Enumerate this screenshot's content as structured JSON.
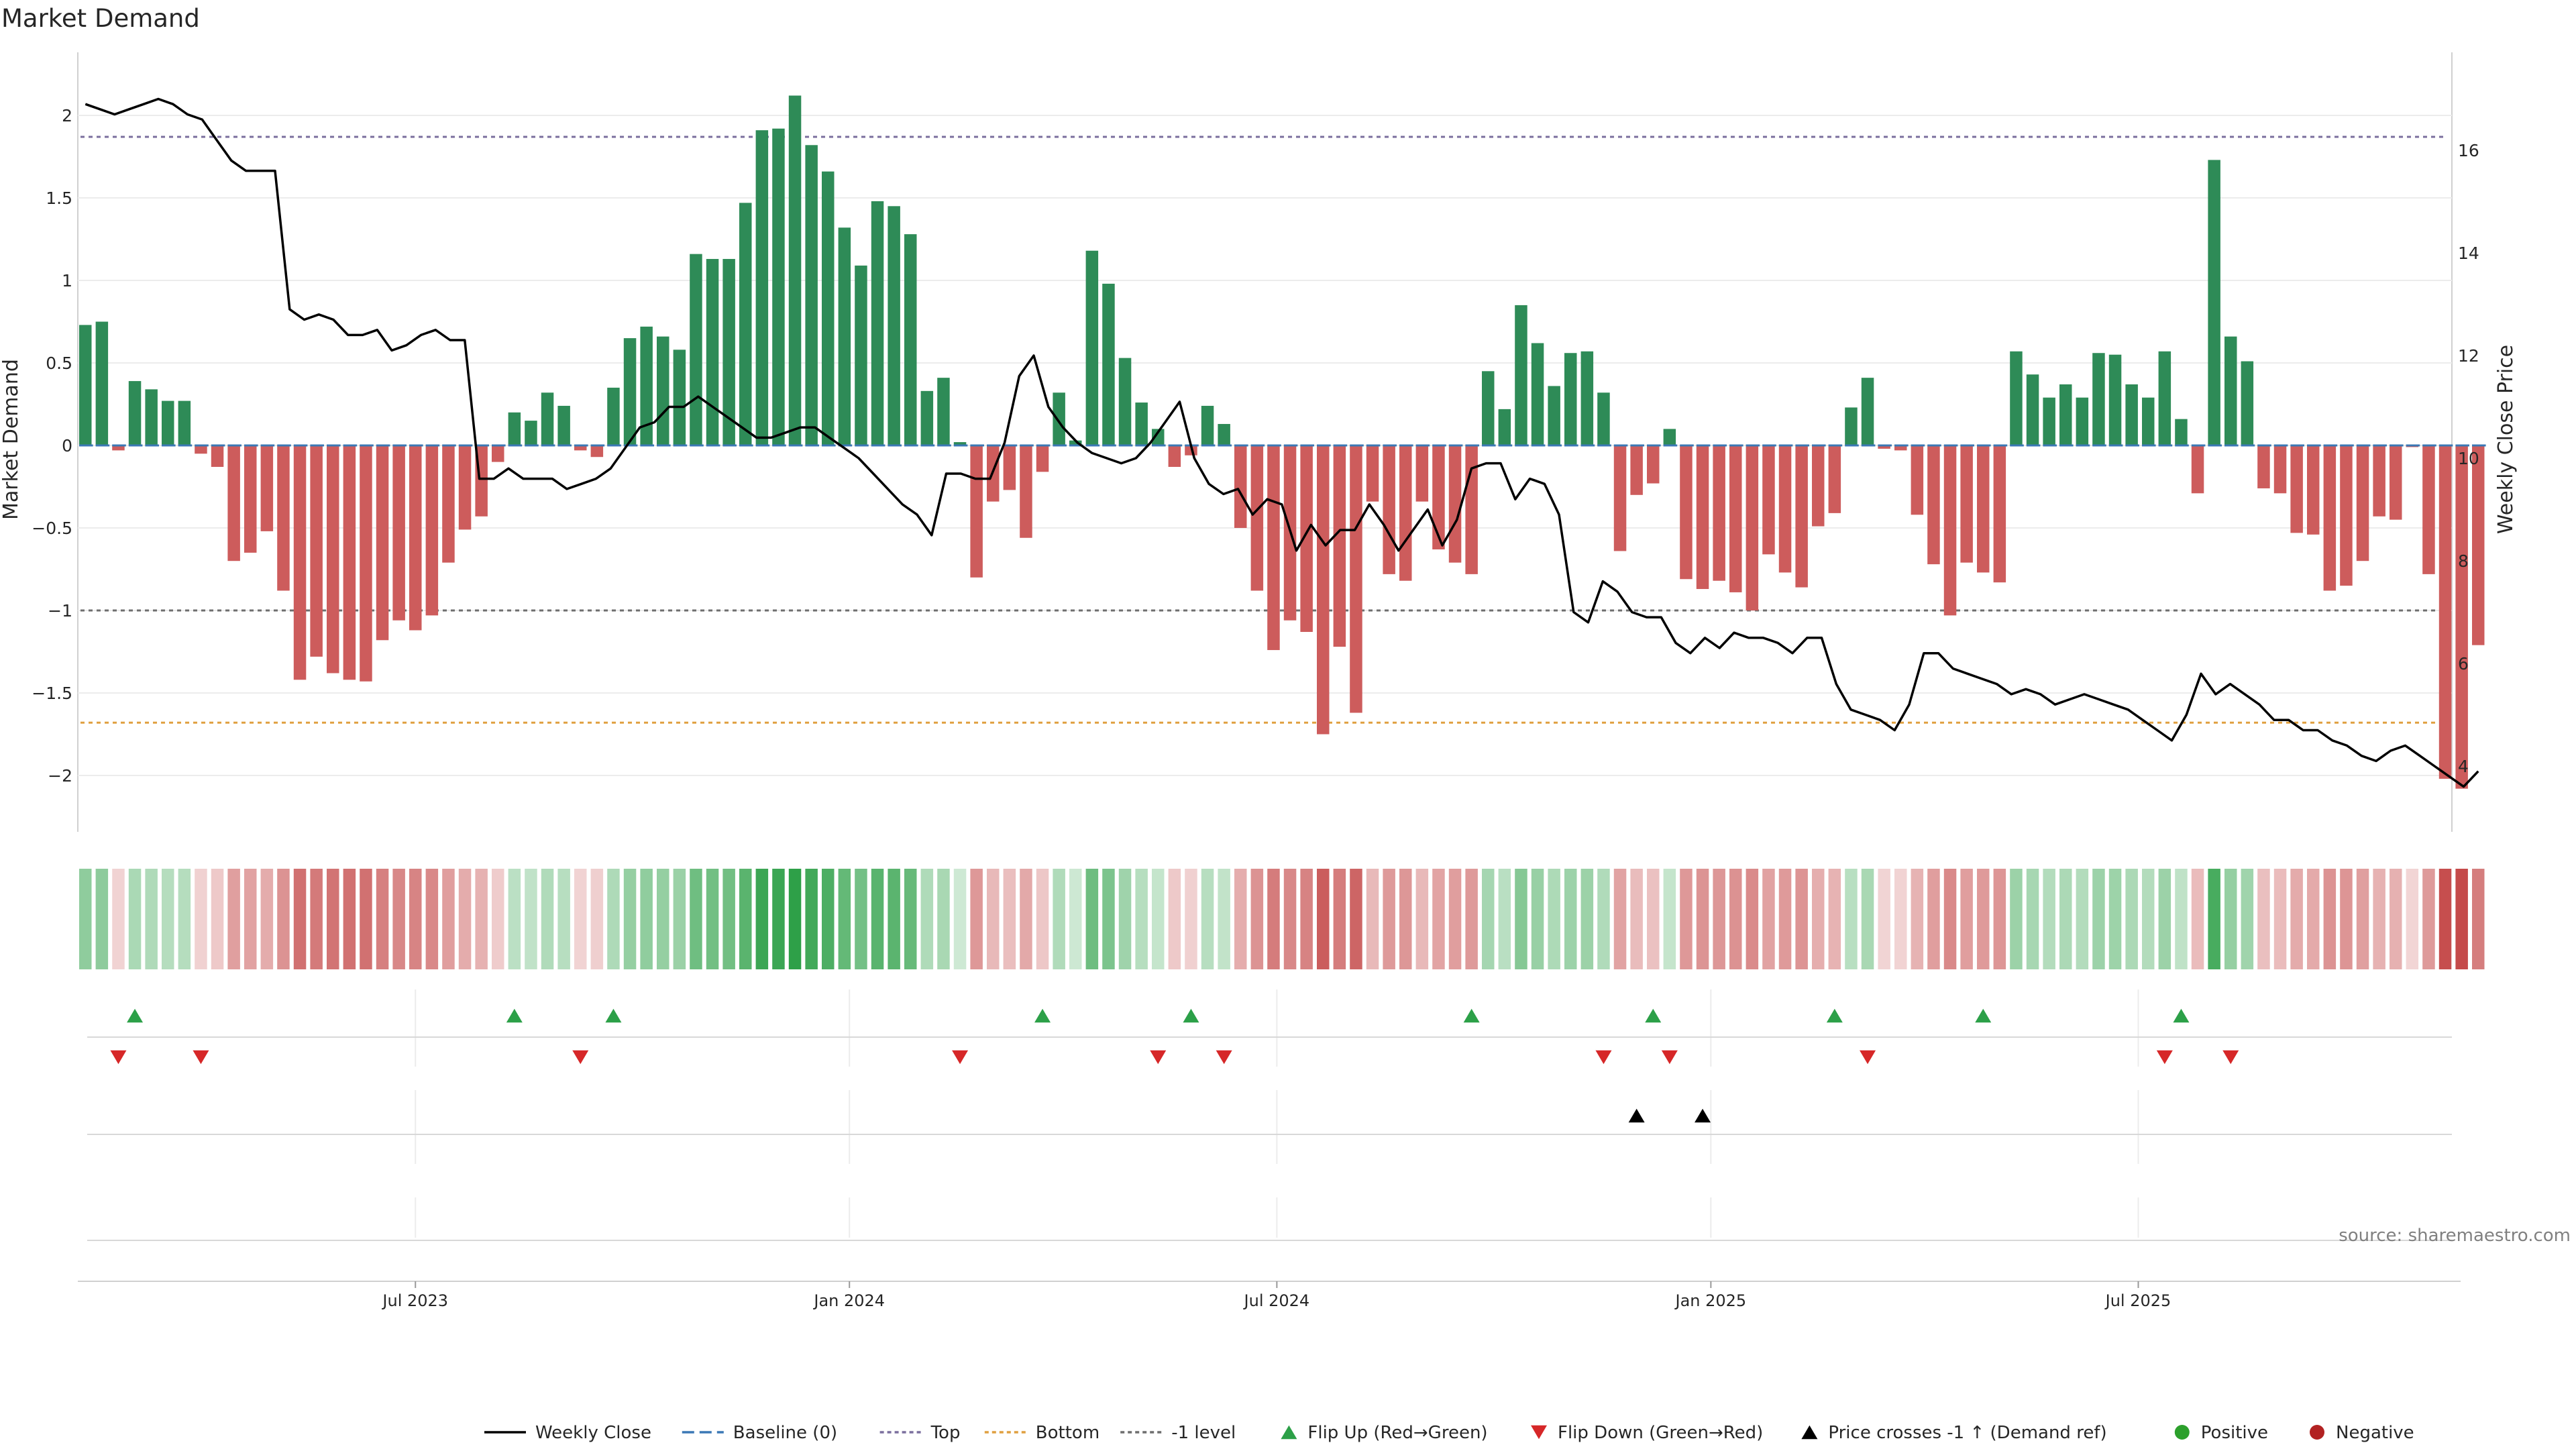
{
  "chart_data": {
    "type": "bar",
    "title": "Market Demand",
    "ylabel": "Market Demand",
    "y2label": "Weekly Close Price",
    "ylim": [
      -2.35,
      2.4
    ],
    "y2lim": [
      3.2,
      18.5
    ],
    "yticks": [
      2,
      1.5,
      1,
      0.5,
      0,
      -0.5,
      -1,
      -1.5,
      -2
    ],
    "ytick_labels": [
      "2",
      "1.5",
      "1",
      "0.5",
      "0",
      "−0.5",
      "−1",
      "−1.5",
      "−2"
    ],
    "y2ticks": [
      4,
      6,
      8,
      10,
      12,
      14,
      16
    ],
    "y2tick_labels": [
      "4",
      "6",
      "8",
      "10",
      "12",
      "14",
      "16"
    ],
    "reference_lines": [
      {
        "name": "Top",
        "value": 1.87,
        "color": "#7b6f9e"
      },
      {
        "name": "-1 level",
        "value": -1.0,
        "color": "#6e6e6e"
      },
      {
        "name": "Bottom",
        "value": -1.68,
        "color": "#e0a040"
      }
    ],
    "x_ticks": [
      {
        "label": "Jul 2023",
        "index": 20
      },
      {
        "label": "Jan 2024",
        "index": 46.3
      },
      {
        "label": "Jul 2024",
        "index": 72.2
      },
      {
        "label": "Jan 2025",
        "index": 98.5
      },
      {
        "label": "Jul 2025",
        "index": 124.4
      }
    ],
    "demand": [
      0.73,
      0.75,
      -0.03,
      0.39,
      0.34,
      0.27,
      0.27,
      -0.05,
      -0.13,
      -0.7,
      -0.65,
      -0.52,
      -0.88,
      -1.42,
      -1.28,
      -1.38,
      -1.42,
      -1.43,
      -1.18,
      -1.06,
      -1.12,
      -1.03,
      -0.71,
      -0.51,
      -0.43,
      -0.1,
      0.2,
      0.15,
      0.32,
      0.24,
      -0.03,
      -0.07,
      0.35,
      0.65,
      0.72,
      0.66,
      0.58,
      1.16,
      1.13,
      1.13,
      1.47,
      1.91,
      1.92,
      2.12,
      1.82,
      1.66,
      1.32,
      1.09,
      1.48,
      1.45,
      1.28,
      0.33,
      0.41,
      0.02,
      -0.8,
      -0.34,
      -0.27,
      -0.56,
      -0.16,
      0.32,
      0.03,
      1.18,
      0.98,
      0.53,
      0.26,
      0.1,
      -0.13,
      -0.06,
      0.24,
      0.13,
      -0.5,
      -0.88,
      -1.24,
      -1.06,
      -1.13,
      -1.75,
      -1.22,
      -1.62,
      -0.34,
      -0.78,
      -0.82,
      -0.34,
      -0.63,
      -0.71,
      -0.78,
      0.45,
      0.22,
      0.85,
      0.62,
      0.36,
      0.56,
      0.57,
      0.32,
      -0.64,
      -0.3,
      -0.23,
      0.1,
      -0.81,
      -0.87,
      -0.82,
      -0.89,
      -1.0,
      -0.66,
      -0.77,
      -0.86,
      -0.49,
      -0.41,
      0.23,
      0.41,
      -0.02,
      -0.03,
      -0.42,
      -0.72,
      -1.03,
      -0.71,
      -0.77,
      -0.83,
      0.57,
      0.43,
      0.29,
      0.37,
      0.29,
      0.56,
      0.55,
      0.37,
      0.29,
      0.57,
      0.16,
      -0.29,
      1.73,
      0.66,
      0.51,
      -0.26,
      -0.29,
      -0.53,
      -0.54,
      -0.88,
      -0.85,
      -0.7,
      -0.43,
      -0.45,
      -0.01,
      -0.78,
      -2.02,
      -2.08,
      -1.21
    ],
    "price": [
      16.9,
      16.8,
      16.7,
      16.8,
      16.9,
      17.0,
      16.9,
      16.7,
      16.6,
      16.2,
      15.8,
      15.6,
      15.6,
      15.6,
      12.9,
      12.7,
      12.8,
      12.7,
      12.4,
      12.4,
      12.5,
      12.1,
      12.2,
      12.4,
      12.5,
      12.3,
      12.3,
      9.6,
      9.6,
      9.8,
      9.6,
      9.6,
      9.6,
      9.4,
      9.5,
      9.6,
      9.8,
      10.2,
      10.6,
      10.7,
      11.0,
      11.0,
      11.2,
      11.0,
      10.8,
      10.6,
      10.4,
      10.4,
      10.5,
      10.6,
      10.6,
      10.4,
      10.2,
      10.0,
      9.7,
      9.4,
      9.1,
      8.9,
      8.5,
      9.7,
      9.7,
      9.6,
      9.6,
      10.3,
      11.6,
      12.0,
      11.0,
      10.6,
      10.3,
      10.1,
      10.0,
      9.9,
      10.0,
      10.3,
      10.7,
      11.1,
      10.0,
      9.5,
      9.3,
      9.4,
      8.9,
      9.2,
      9.1,
      8.2,
      8.7,
      8.3,
      8.6,
      8.6,
      9.1,
      8.7,
      8.2,
      8.6,
      9.0,
      8.3,
      8.8,
      9.8,
      9.9,
      9.9,
      9.2,
      9.6,
      9.5,
      8.9,
      7.0,
      6.8,
      7.6,
      7.4,
      7.0,
      6.9,
      6.9,
      6.4,
      6.2,
      6.5,
      6.3,
      6.6,
      6.5,
      6.5,
      6.4,
      6.2,
      6.5,
      6.5,
      5.6,
      5.1,
      5.0,
      4.9,
      4.7,
      5.2,
      6.2,
      6.2,
      5.9,
      5.8,
      5.7,
      5.6,
      5.4,
      5.5,
      5.4,
      5.2,
      5.3,
      5.4,
      5.3,
      5.2,
      5.1,
      4.9,
      4.7,
      4.5,
      5.0,
      5.8,
      5.4,
      5.6,
      5.4,
      5.2,
      4.9,
      4.9,
      4.7,
      4.7,
      4.5,
      4.4,
      4.2,
      4.1,
      4.3,
      4.4,
      4.2,
      4.0,
      3.8,
      3.6,
      3.9
    ],
    "flip_up_idx": [
      3,
      26,
      32,
      58,
      67,
      84,
      95,
      106,
      115,
      127
    ],
    "flip_down_idx": [
      2,
      7,
      30,
      53,
      65,
      69,
      92,
      96,
      108,
      126,
      130
    ],
    "price_cross_idx": [
      94,
      98
    ],
    "legend": [
      "Weekly Close",
      "Baseline (0)",
      "Top",
      "Bottom",
      "-1 level",
      "Flip Up (Red→Green)",
      "Flip Down (Green→Red)",
      "Price crosses -1 ↑ (Demand ref)",
      "Positive",
      "Negative"
    ],
    "source": "source: sharemaestro.com"
  },
  "colors": {
    "positive": "#2e8b57",
    "negative": "#cd5c5c",
    "price_line": "#000000",
    "baseline": "#3b78b5",
    "flip_up": "#2ca048",
    "flip_down": "#d62728",
    "cross": "#000000",
    "legend_positive": "#2ca02c",
    "legend_negative": "#b22222"
  }
}
